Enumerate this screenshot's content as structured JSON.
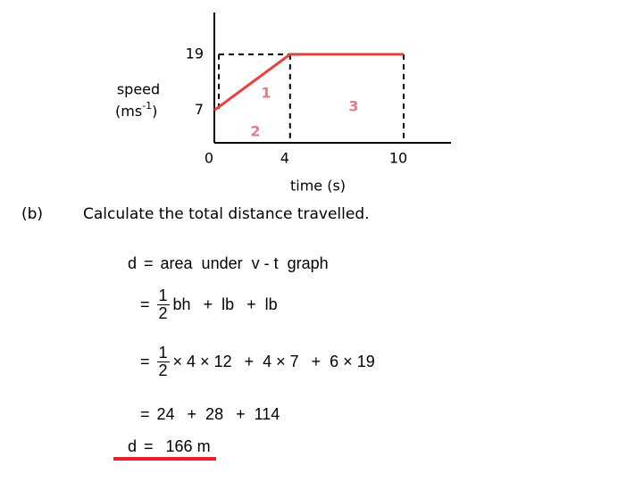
{
  "chart_data": {
    "type": "line",
    "x": [
      0,
      4,
      10
    ],
    "values": [
      7,
      19,
      19
    ],
    "color": "#e8413c",
    "xlim": [
      0,
      12.5
    ],
    "ylim": [
      0,
      28
    ],
    "xticks": [
      0,
      4,
      10
    ],
    "yticks": [
      7,
      19
    ],
    "x_label": "time (s)",
    "y_label": {
      "word": "speed",
      "unit": "(ms",
      "exponent": "-1",
      "close": ")"
    },
    "region_labels": [
      "1",
      "2",
      "3"
    ],
    "region_color": "#e8788a"
  },
  "question": {
    "part": "(b)",
    "text": "Calculate the total distance travelled."
  },
  "working": [
    [
      "d",
      "=",
      "area  under  v - t  graph"
    ],
    [
      "=",
      {
        "num": "1",
        "den": "2"
      },
      "bh",
      "+  lb",
      "+  lb"
    ],
    [
      "=",
      {
        "num": "1",
        "den": "2"
      },
      "× 4 × 12",
      "+  4 × 7",
      "+  6 × 19"
    ],
    [
      "=",
      "24",
      "+  28",
      "+  114"
    ],
    [
      "d",
      "=",
      "166 m"
    ]
  ],
  "answer_underline_color": "#e8202a"
}
